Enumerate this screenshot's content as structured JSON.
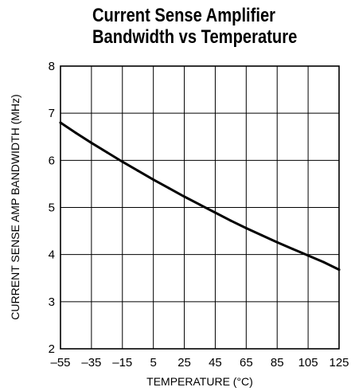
{
  "chart_data": {
    "type": "line",
    "title": [
      "Current Sense Amplifier",
      "Bandwidth vs Temperature"
    ],
    "xlabel": "TEMPERATURE (°C)",
    "ylabel": "CURRENT SENSE AMP BANDWIDTH (MHz)",
    "xlim": [
      -55,
      125
    ],
    "ylim": [
      2,
      8
    ],
    "xticks": [
      -55,
      -35,
      -15,
      5,
      25,
      45,
      65,
      85,
      105,
      125
    ],
    "xtick_labels": [
      "–55",
      "–35",
      "–15",
      "5",
      "25",
      "45",
      "65",
      "85",
      "105",
      "125"
    ],
    "yticks": [
      2,
      3,
      4,
      5,
      6,
      7,
      8
    ],
    "ytick_labels": [
      "2",
      "3",
      "4",
      "5",
      "6",
      "7",
      "8"
    ],
    "grid": true,
    "series": [
      {
        "color": "#000000",
        "x": [
          -55,
          -45,
          -35,
          -25,
          -15,
          -5,
          5,
          15,
          25,
          35,
          45,
          55,
          65,
          75,
          85,
          95,
          105,
          115,
          125
        ],
        "y": [
          6.8,
          6.58,
          6.37,
          6.17,
          5.97,
          5.78,
          5.59,
          5.41,
          5.23,
          5.06,
          4.89,
          4.72,
          4.56,
          4.41,
          4.26,
          4.12,
          3.98,
          3.84,
          3.68
        ]
      }
    ]
  }
}
